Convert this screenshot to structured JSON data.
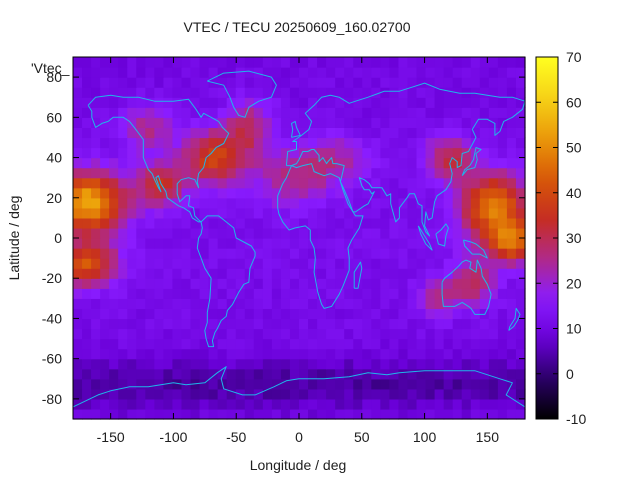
{
  "chart_data": {
    "type": "heatmap",
    "title": "VTEC / TECU 20250609_160.02700",
    "xlabel": "Longitude / deg",
    "ylabel": "Latitude / deg",
    "xlim": [
      -180,
      180
    ],
    "ylim": [
      -90,
      90
    ],
    "x_ticks": [
      -150,
      -100,
      -50,
      0,
      50,
      100,
      150
    ],
    "y_ticks": [
      -80,
      -60,
      -40,
      -20,
      0,
      20,
      40,
      60,
      80
    ],
    "colorbar": {
      "range": [
        -10,
        70
      ],
      "ticks": [
        -10,
        0,
        10,
        20,
        30,
        40,
        50,
        60,
        70
      ],
      "palette": [
        "#000000",
        "#2a0066",
        "#6a00d8",
        "#8a1cff",
        "#b12a86",
        "#c62d1f",
        "#d85a08",
        "#eb9a09",
        "#f6d317",
        "#ffff20"
      ]
    },
    "legend_label": "'Vtec_",
    "data_summary": {
      "background_tecu": 12,
      "maxima": [
        {
          "lon": -165,
          "lat": 20,
          "vtec": 55
        },
        {
          "lon": 150,
          "lat": 10,
          "vtec": 50
        }
      ],
      "noon_longitude_deg": -60
    }
  }
}
